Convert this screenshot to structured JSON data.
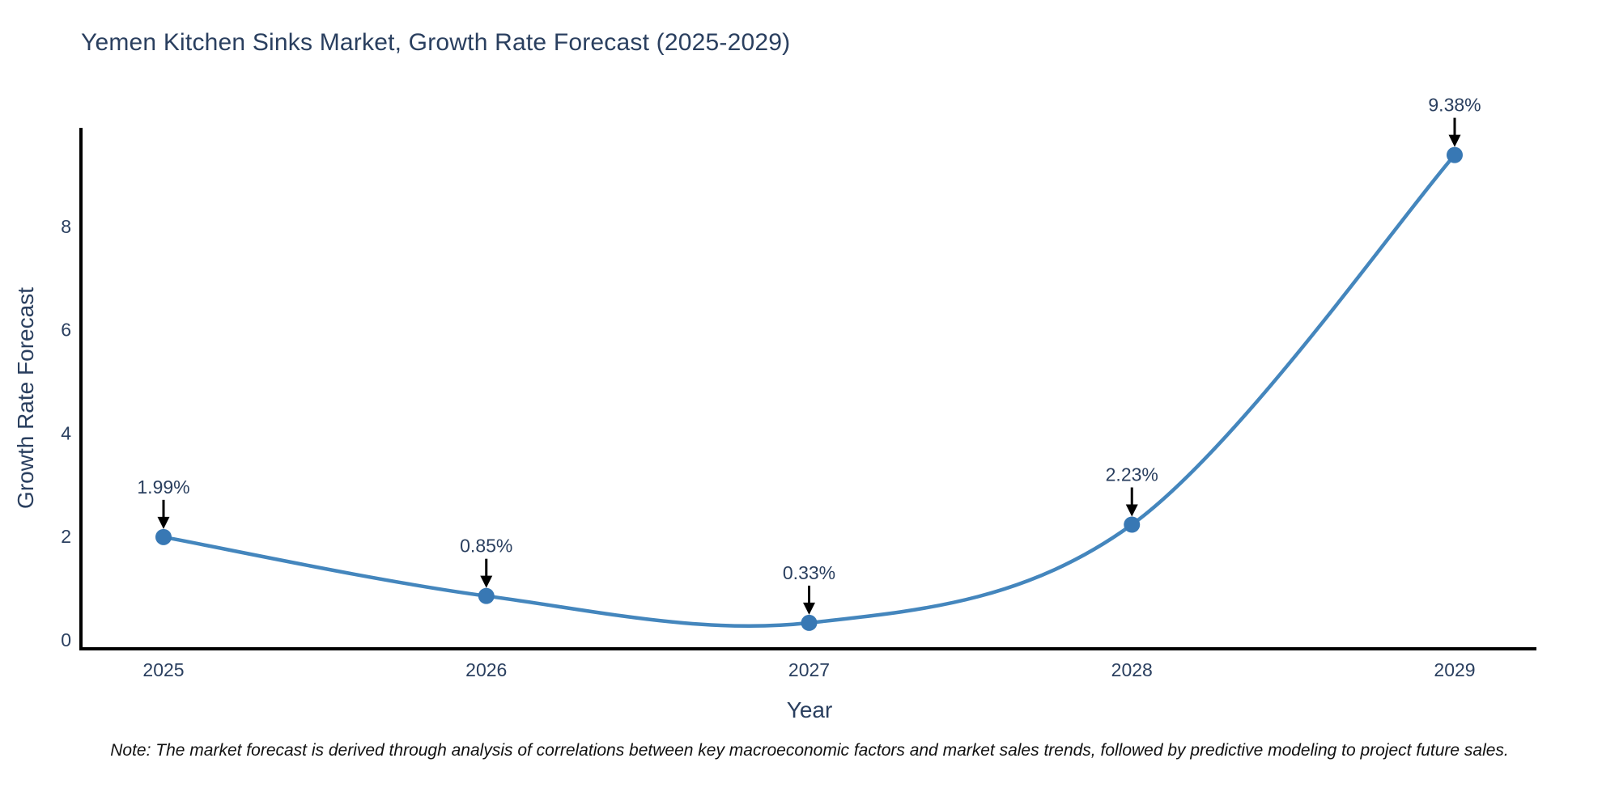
{
  "title": "Yemen Kitchen Sinks Market, Growth Rate Forecast (2025-2029)",
  "note": "Note: The market forecast is derived through analysis of correlations between key macroeconomic factors and market sales trends, followed by predictive modeling to project future sales.",
  "chart_data": {
    "type": "line",
    "line_shape": "spline",
    "title": "Yemen Kitchen Sinks Market, Growth Rate Forecast (2025-2029)",
    "xlabel": "Year",
    "ylabel": "Growth Rate Forecast",
    "categories": [
      "2025",
      "2026",
      "2027",
      "2028",
      "2029"
    ],
    "values": [
      1.99,
      0.85,
      0.33,
      2.23,
      9.38
    ],
    "point_labels": [
      "1.99%",
      "0.85%",
      "0.33%",
      "2.23%",
      "9.38%"
    ],
    "yticks": [
      0,
      2,
      4,
      6,
      8
    ],
    "ylim": [
      0,
      10
    ],
    "grid": false,
    "legend": "none",
    "colors": {
      "line": "#4486bd",
      "marker": "#3878b4",
      "axis": "#000000",
      "tick_text": "#2a3f5f",
      "annotation_text": "#2a3f5f",
      "annotation_arrow": "#000000",
      "title_text": "#2a3f5f",
      "note_text": "#111111",
      "background": "#ffffff"
    }
  }
}
